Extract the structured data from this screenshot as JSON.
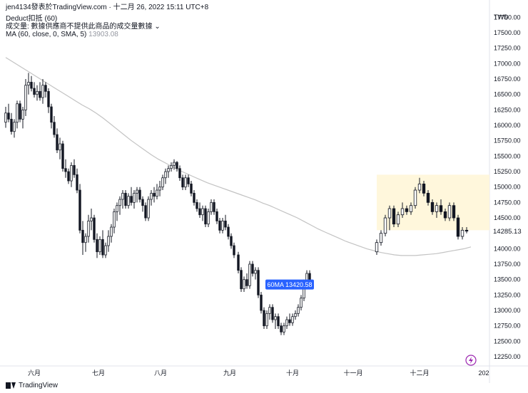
{
  "header": {
    "publisher": "jen4134發表於TradingView.com",
    "timestamp": "十二月 26, 2022 15:11 UTC+8",
    "indicator_deduct": "Deduct扣抵 (60)",
    "indicator_volume": "成交量: 數據供應商不提供此商品的成交量數據",
    "indicator_ma": "MA (60, close, 0, SMA, 5)",
    "ma_value": "13903.08"
  },
  "footer": {
    "brand": "TradingView"
  },
  "colors": {
    "candle_up_fill": "#ffffff",
    "candle_down_fill": "#131722",
    "candle_border": "#131722",
    "ma_line": "#c3c3c3",
    "highlight_box": "#fff7dc",
    "label_bg": "#2962ff",
    "price_tag_bg": "#ffffff",
    "alert_icon": "#9c27b0"
  },
  "chart_data": {
    "type": "candlestick",
    "currency": "TWD",
    "ylim": [
      12100,
      17870
    ],
    "y_ticks": [
      12250,
      12500,
      12750,
      13000,
      13250,
      13500,
      13750,
      14000,
      14250,
      14500,
      14750,
      15000,
      15250,
      15500,
      15750,
      16000,
      16250,
      16500,
      16750,
      17000,
      17250,
      17500,
      17750
    ],
    "x_ticks": [
      "六月",
      "七月",
      "八月",
      "九月",
      "十月",
      "十一月",
      "十二月",
      "202"
    ],
    "last_price": "14285.13",
    "ma_label": "60MA 13420.58",
    "highlight_range": {
      "from_index": 123,
      "to_index": 160,
      "price_low": 14300,
      "price_high": 15200
    },
    "candles": [
      {
        "o": 16050,
        "h": 16300,
        "l": 15960,
        "c": 16200
      },
      {
        "o": 16200,
        "h": 16350,
        "l": 16050,
        "c": 16100
      },
      {
        "o": 16100,
        "h": 16200,
        "l": 15850,
        "c": 15900
      },
      {
        "o": 15900,
        "h": 16100,
        "l": 15800,
        "c": 16050
      },
      {
        "o": 16050,
        "h": 16400,
        "l": 15950,
        "c": 16350
      },
      {
        "o": 16350,
        "h": 16400,
        "l": 16050,
        "c": 16100
      },
      {
        "o": 16100,
        "h": 16300,
        "l": 15950,
        "c": 16250
      },
      {
        "o": 16250,
        "h": 16750,
        "l": 16150,
        "c": 16650
      },
      {
        "o": 16650,
        "h": 16850,
        "l": 16500,
        "c": 16700
      },
      {
        "o": 16700,
        "h": 16800,
        "l": 16550,
        "c": 16600
      },
      {
        "o": 16600,
        "h": 16700,
        "l": 16450,
        "c": 16500
      },
      {
        "o": 16500,
        "h": 16650,
        "l": 16400,
        "c": 16550
      },
      {
        "o": 16550,
        "h": 16700,
        "l": 16400,
        "c": 16450
      },
      {
        "o": 16450,
        "h": 16750,
        "l": 16350,
        "c": 16650
      },
      {
        "o": 16650,
        "h": 16700,
        "l": 16450,
        "c": 16550
      },
      {
        "o": 16550,
        "h": 16600,
        "l": 16200,
        "c": 16300
      },
      {
        "o": 16300,
        "h": 16350,
        "l": 15950,
        "c": 16050
      },
      {
        "o": 16050,
        "h": 16150,
        "l": 15800,
        "c": 15850
      },
      {
        "o": 15850,
        "h": 15950,
        "l": 15550,
        "c": 15600
      },
      {
        "o": 15600,
        "h": 15800,
        "l": 15450,
        "c": 15700
      },
      {
        "o": 15700,
        "h": 15750,
        "l": 15250,
        "c": 15300
      },
      {
        "o": 15300,
        "h": 15450,
        "l": 15150,
        "c": 15250
      },
      {
        "o": 15250,
        "h": 15300,
        "l": 15050,
        "c": 15100
      },
      {
        "o": 15100,
        "h": 15400,
        "l": 15000,
        "c": 15350
      },
      {
        "o": 15350,
        "h": 15450,
        "l": 15150,
        "c": 15200
      },
      {
        "o": 15200,
        "h": 15300,
        "l": 14900,
        "c": 14950
      },
      {
        "o": 14950,
        "h": 15050,
        "l": 14250,
        "c": 14300
      },
      {
        "o": 14300,
        "h": 14450,
        "l": 13900,
        "c": 14100
      },
      {
        "o": 14100,
        "h": 14250,
        "l": 13950,
        "c": 14200
      },
      {
        "o": 14200,
        "h": 14550,
        "l": 14100,
        "c": 14450
      },
      {
        "o": 14450,
        "h": 14650,
        "l": 14300,
        "c": 14500
      },
      {
        "o": 14500,
        "h": 14550,
        "l": 14100,
        "c": 14150
      },
      {
        "o": 14150,
        "h": 14250,
        "l": 13850,
        "c": 13950
      },
      {
        "o": 13950,
        "h": 14200,
        "l": 13900,
        "c": 14150
      },
      {
        "o": 14150,
        "h": 14300,
        "l": 13850,
        "c": 13900
      },
      {
        "o": 13900,
        "h": 14100,
        "l": 13850,
        "c": 14050
      },
      {
        "o": 14050,
        "h": 14300,
        "l": 13950,
        "c": 14200
      },
      {
        "o": 14200,
        "h": 14400,
        "l": 14100,
        "c": 14350
      },
      {
        "o": 14350,
        "h": 14650,
        "l": 14250,
        "c": 14600
      },
      {
        "o": 14600,
        "h": 14750,
        "l": 14450,
        "c": 14700
      },
      {
        "o": 14700,
        "h": 14850,
        "l": 14550,
        "c": 14800
      },
      {
        "o": 14800,
        "h": 14950,
        "l": 14650,
        "c": 14900
      },
      {
        "o": 14900,
        "h": 14950,
        "l": 14650,
        "c": 14700
      },
      {
        "o": 14700,
        "h": 14900,
        "l": 14650,
        "c": 14850
      },
      {
        "o": 14850,
        "h": 15000,
        "l": 14700,
        "c": 14750
      },
      {
        "o": 14750,
        "h": 14950,
        "l": 14650,
        "c": 14900
      },
      {
        "o": 14900,
        "h": 15000,
        "l": 14750,
        "c": 14950
      },
      {
        "o": 14950,
        "h": 15000,
        "l": 14750,
        "c": 14800
      },
      {
        "o": 14800,
        "h": 14850,
        "l": 14600,
        "c": 14700
      },
      {
        "o": 14700,
        "h": 14750,
        "l": 14450,
        "c": 14500
      },
      {
        "o": 14500,
        "h": 14850,
        "l": 14450,
        "c": 14800
      },
      {
        "o": 14800,
        "h": 14950,
        "l": 14700,
        "c": 14900
      },
      {
        "o": 14900,
        "h": 15000,
        "l": 14750,
        "c": 14850
      },
      {
        "o": 14850,
        "h": 15050,
        "l": 14800,
        "c": 14950
      },
      {
        "o": 14950,
        "h": 15100,
        "l": 14850,
        "c": 15000
      },
      {
        "o": 15000,
        "h": 15200,
        "l": 14950,
        "c": 15150
      },
      {
        "o": 15150,
        "h": 15300,
        "l": 15050,
        "c": 15250
      },
      {
        "o": 15250,
        "h": 15350,
        "l": 15150,
        "c": 15300
      },
      {
        "o": 15300,
        "h": 15400,
        "l": 15250,
        "c": 15350
      },
      {
        "o": 15350,
        "h": 15450,
        "l": 15280,
        "c": 15400
      },
      {
        "o": 15400,
        "h": 15420,
        "l": 15250,
        "c": 15300
      },
      {
        "o": 15300,
        "h": 15350,
        "l": 15100,
        "c": 15150
      },
      {
        "o": 15150,
        "h": 15200,
        "l": 14950,
        "c": 15000
      },
      {
        "o": 15000,
        "h": 15200,
        "l": 14950,
        "c": 15150
      },
      {
        "o": 15150,
        "h": 15200,
        "l": 15000,
        "c": 15050
      },
      {
        "o": 15050,
        "h": 15100,
        "l": 14850,
        "c": 14900
      },
      {
        "o": 14900,
        "h": 14950,
        "l": 14700,
        "c": 14750
      },
      {
        "o": 14750,
        "h": 14800,
        "l": 14600,
        "c": 14650
      },
      {
        "o": 14650,
        "h": 14750,
        "l": 14500,
        "c": 14550
      },
      {
        "o": 14550,
        "h": 14700,
        "l": 14450,
        "c": 14650
      },
      {
        "o": 14650,
        "h": 14700,
        "l": 14350,
        "c": 14400
      },
      {
        "o": 14400,
        "h": 14650,
        "l": 14350,
        "c": 14600
      },
      {
        "o": 14600,
        "h": 14800,
        "l": 14550,
        "c": 14750
      },
      {
        "o": 14750,
        "h": 14800,
        "l": 14550,
        "c": 14600
      },
      {
        "o": 14600,
        "h": 14650,
        "l": 14400,
        "c": 14450
      },
      {
        "o": 14450,
        "h": 14500,
        "l": 14250,
        "c": 14300
      },
      {
        "o": 14300,
        "h": 14500,
        "l": 14250,
        "c": 14450
      },
      {
        "o": 14450,
        "h": 14550,
        "l": 14300,
        "c": 14350
      },
      {
        "o": 14350,
        "h": 14400,
        "l": 14150,
        "c": 14200
      },
      {
        "o": 14200,
        "h": 14250,
        "l": 14000,
        "c": 14050
      },
      {
        "o": 14050,
        "h": 14100,
        "l": 13850,
        "c": 13900
      },
      {
        "o": 13900,
        "h": 13950,
        "l": 13600,
        "c": 13650
      },
      {
        "o": 13650,
        "h": 13700,
        "l": 13300,
        "c": 13350
      },
      {
        "o": 13350,
        "h": 13550,
        "l": 13300,
        "c": 13500
      },
      {
        "o": 13500,
        "h": 13600,
        "l": 13350,
        "c": 13400
      },
      {
        "o": 13400,
        "h": 13800,
        "l": 13350,
        "c": 13750
      },
      {
        "o": 13750,
        "h": 13800,
        "l": 13550,
        "c": 13600
      },
      {
        "o": 13600,
        "h": 13700,
        "l": 13500,
        "c": 13650
      },
      {
        "o": 13650,
        "h": 13700,
        "l": 13200,
        "c": 13250
      },
      {
        "o": 13250,
        "h": 13300,
        "l": 12950,
        "c": 13000
      },
      {
        "o": 13000,
        "h": 13050,
        "l": 12700,
        "c": 12750
      },
      {
        "o": 12750,
        "h": 13000,
        "l": 12700,
        "c": 12950
      },
      {
        "o": 12950,
        "h": 13100,
        "l": 12850,
        "c": 13050
      },
      {
        "o": 13050,
        "h": 13100,
        "l": 12800,
        "c": 12850
      },
      {
        "o": 12850,
        "h": 12950,
        "l": 12700,
        "c": 12900
      },
      {
        "o": 12900,
        "h": 12950,
        "l": 12700,
        "c": 12750
      },
      {
        "o": 12750,
        "h": 12800,
        "l": 12600,
        "c": 12650
      },
      {
        "o": 12650,
        "h": 12800,
        "l": 12600,
        "c": 12750
      },
      {
        "o": 12750,
        "h": 12900,
        "l": 12700,
        "c": 12850
      },
      {
        "o": 12850,
        "h": 12950,
        "l": 12750,
        "c": 12800
      },
      {
        "o": 12800,
        "h": 12950,
        "l": 12750,
        "c": 12900
      },
      {
        "o": 12900,
        "h": 13000,
        "l": 12850,
        "c": 12950
      },
      {
        "o": 12950,
        "h": 13100,
        "l": 12900,
        "c": 13050
      },
      {
        "o": 13050,
        "h": 13250,
        "l": 13000,
        "c": 13200
      },
      {
        "o": 13200,
        "h": 13500,
        "l": 13150,
        "c": 13450
      },
      {
        "o": 13450,
        "h": 13650,
        "l": 13400,
        "c": 13600
      },
      {
        "o": 13600,
        "h": 13650,
        "l": 13450,
        "c": 13500
      }
    ],
    "candles_recent": [
      {
        "o": 13950,
        "h": 14150,
        "l": 13900,
        "c": 14100
      },
      {
        "o": 14100,
        "h": 14300,
        "l": 14050,
        "c": 14250
      },
      {
        "o": 14250,
        "h": 14550,
        "l": 14200,
        "c": 14500
      },
      {
        "o": 14500,
        "h": 14700,
        "l": 14300,
        "c": 14650
      },
      {
        "o": 14650,
        "h": 14700,
        "l": 14350,
        "c": 14400
      },
      {
        "o": 14400,
        "h": 14600,
        "l": 14350,
        "c": 14550
      },
      {
        "o": 14550,
        "h": 14750,
        "l": 14500,
        "c": 14650
      },
      {
        "o": 14650,
        "h": 14700,
        "l": 14550,
        "c": 14600
      },
      {
        "o": 14600,
        "h": 14750,
        "l": 14550,
        "c": 14700
      },
      {
        "o": 14700,
        "h": 15000,
        "l": 14650,
        "c": 14950
      },
      {
        "o": 14950,
        "h": 15150,
        "l": 14900,
        "c": 15050
      },
      {
        "o": 15050,
        "h": 15100,
        "l": 14850,
        "c": 14900
      },
      {
        "o": 14900,
        "h": 14950,
        "l": 14700,
        "c": 14750
      },
      {
        "o": 14750,
        "h": 14800,
        "l": 14550,
        "c": 14600
      },
      {
        "o": 14600,
        "h": 14750,
        "l": 14500,
        "c": 14700
      },
      {
        "o": 14700,
        "h": 14800,
        "l": 14550,
        "c": 14600
      },
      {
        "o": 14600,
        "h": 14650,
        "l": 14450,
        "c": 14500
      },
      {
        "o": 14500,
        "h": 14750,
        "l": 14450,
        "c": 14700
      },
      {
        "o": 14700,
        "h": 14750,
        "l": 14450,
        "c": 14500
      },
      {
        "o": 14500,
        "h": 14550,
        "l": 14150,
        "c": 14200
      },
      {
        "o": 14200,
        "h": 14350,
        "l": 14150,
        "c": 14300
      },
      {
        "o": 14300,
        "h": 14350,
        "l": 14250,
        "c": 14285
      }
    ],
    "ma_values": [
      17100,
      17030,
      16960,
      16890,
      16820,
      16750,
      16680,
      16610,
      16540,
      16470,
      16400,
      16330,
      16270,
      16200,
      16120,
      16030,
      15940,
      15850,
      15760,
      15680,
      15600,
      15520,
      15450,
      15390,
      15330,
      15270,
      15220,
      15170,
      15120,
      15070,
      15030,
      14990,
      14950,
      14910,
      14870,
      14830,
      14790,
      14740,
      14700,
      14650,
      14600,
      14550,
      14500,
      14440,
      14380,
      14320,
      14270,
      14220,
      14170,
      14120,
      14080,
      14040,
      14000,
      13970,
      13940,
      13920,
      13900,
      13890,
      13890,
      13890,
      13900,
      13910,
      13920,
      13940,
      13960,
      13980,
      14000,
      14030
    ],
    "ma_x_start_index": 0
  }
}
